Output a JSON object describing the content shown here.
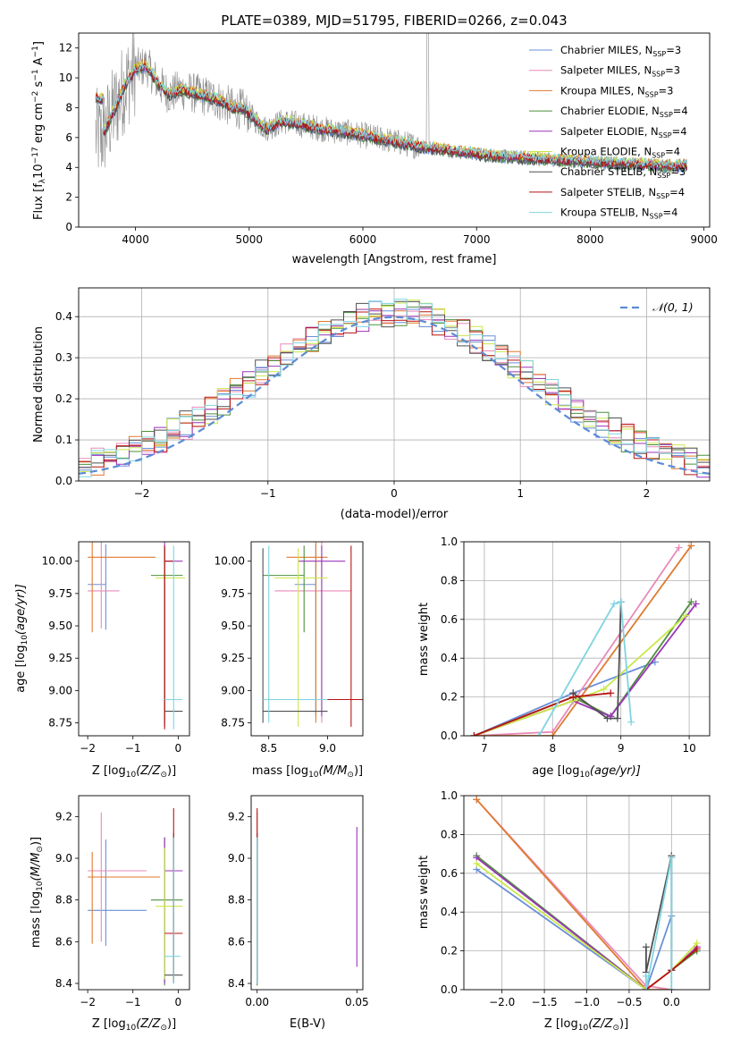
{
  "colors": {
    "chabrier_miles": "#6a8fd8",
    "salpeter_miles": "#e88ab8",
    "kroupa_miles": "#e07a2e",
    "chabrier_elodie": "#4e8f3e",
    "salpeter_elodie": "#9b35b8",
    "kroupa_elodie": "#c9e84a",
    "chabrier_stelib": "#505050",
    "salpeter_stelib": "#b81414",
    "kroupa_stelib": "#7fd4e0",
    "data": "#8a8a8a",
    "gaussian": "#5b8bd6"
  },
  "chart_data": [
    {
      "id": "spectrum",
      "type": "line",
      "title": "PLATE=0389, MJD=51795, FIBERID=0266, z=0.043",
      "xlabel": "wavelength [Angstrom, rest frame]",
      "ylabel_main": "Flux [f",
      "ylabel_sub": "λ",
      "ylabel_rest": "10",
      "ylabel_exp": "−17",
      "ylabel_unit": " erg cm",
      "xlim": [
        3500,
        9050
      ],
      "ylim": [
        0,
        13
      ],
      "xticks": [
        "4000",
        "5000",
        "6000",
        "7000",
        "8000",
        "9000"
      ],
      "yticks": [
        "0",
        "2",
        "4",
        "6",
        "8",
        "10",
        "12"
      ],
      "legend": [
        {
          "name": "Chabrier MILES, N",
          "sub": "SSP",
          "n": "=3",
          "color_key": "chabrier_miles"
        },
        {
          "name": "Salpeter MILES, N",
          "sub": "SSP",
          "n": "=3",
          "color_key": "salpeter_miles"
        },
        {
          "name": "Kroupa MILES, N",
          "sub": "SSP",
          "n": "=3",
          "color_key": "kroupa_miles"
        },
        {
          "name": "Chabrier ELODIE, N",
          "sub": "SSP",
          "n": "=4",
          "color_key": "chabrier_elodie"
        },
        {
          "name": "Salpeter ELODIE, N",
          "sub": "SSP",
          "n": "=4",
          "color_key": "salpeter_elodie"
        },
        {
          "name": "Kroupa ELODIE, N",
          "sub": "SSP",
          "n": "=4",
          "color_key": "kroupa_elodie"
        },
        {
          "name": "Chabrier STELIB, N",
          "sub": "SSP",
          "n": "=3",
          "color_key": "chabrier_stelib"
        },
        {
          "name": "Salpeter STELIB, N",
          "sub": "SSP",
          "n": "=4",
          "color_key": "salpeter_stelib"
        },
        {
          "name": "Kroupa STELIB, N",
          "sub": "SSP",
          "n": "=4",
          "color_key": "kroupa_stelib"
        }
      ],
      "legend_position": "upper-right",
      "continuum": [
        [
          3650,
          6.2
        ],
        [
          3700,
          6.0
        ],
        [
          3800,
          7.6
        ],
        [
          3900,
          9.4
        ],
        [
          4000,
          10.6
        ],
        [
          4100,
          10.8
        ],
        [
          4200,
          9.6
        ],
        [
          4300,
          8.9
        ],
        [
          4400,
          9.2
        ],
        [
          4500,
          9.0
        ],
        [
          4700,
          8.6
        ],
        [
          4850,
          8.0
        ],
        [
          4950,
          7.9
        ],
        [
          5050,
          7.2
        ],
        [
          5150,
          6.6
        ],
        [
          5300,
          7.1
        ],
        [
          5500,
          6.8
        ],
        [
          5700,
          6.5
        ],
        [
          5900,
          6.3
        ],
        [
          6100,
          6.0
        ],
        [
          6300,
          5.7
        ],
        [
          6500,
          5.4
        ],
        [
          6700,
          5.2
        ],
        [
          6900,
          5.0
        ],
        [
          7100,
          4.8
        ],
        [
          7300,
          4.7
        ],
        [
          7500,
          4.6
        ],
        [
          7700,
          4.5
        ],
        [
          8000,
          4.35
        ],
        [
          8300,
          4.25
        ],
        [
          8600,
          4.15
        ],
        [
          8850,
          4.1
        ]
      ]
    },
    {
      "id": "residuals",
      "type": "histogram",
      "xlabel": "(data-model)/error",
      "ylabel": "Normed distribution",
      "xlim": [
        -2.5,
        2.5
      ],
      "ylim": [
        0,
        0.47
      ],
      "xticks": [
        "−2",
        "−1",
        "0",
        "1",
        "2"
      ],
      "yticks": [
        "0.0",
        "0.1",
        "0.2",
        "0.3",
        "0.4"
      ],
      "grid": true,
      "legend": [
        {
          "name": "𝒩(0, 1)",
          "style": "dashed",
          "color_key": "gaussian"
        }
      ],
      "legend_position": "upper-right",
      "bins": [
        -2.5,
        2.5,
        50
      ]
    },
    {
      "id": "age_vs_Z",
      "type": "errorbar",
      "xlabel": "Z [log",
      "xlabel_sub": "10",
      "xlabel_rest": "(Z/Z",
      "xlabel_sun": "⊙",
      "xlabel_end": ")]",
      "ylabel": "age  [log",
      "ylabel_sub": "10",
      "ylabel_rest": "(age/yr)]",
      "xlim": [
        -2.2,
        0.25
      ],
      "ylim": [
        8.65,
        10.15
      ],
      "xticks": [
        "−2",
        "−1",
        "0"
      ],
      "yticks": [
        "8.75",
        "9.00",
        "9.25",
        "9.50",
        "9.75",
        "10.00"
      ],
      "points": [
        {
          "c": "chabrier_miles",
          "x": -1.6,
          "xe": [
            -2.0,
            -1.6
          ],
          "y": 9.82,
          "ye": [
            9.47,
            10.13
          ]
        },
        {
          "c": "salpeter_miles",
          "x": -1.7,
          "xe": [
            -2.0,
            -1.3
          ],
          "y": 9.77,
          "ye": [
            9.48,
            10.15
          ]
        },
        {
          "c": "kroupa_miles",
          "x": -1.9,
          "xe": [
            -2.0,
            -0.5
          ],
          "y": 10.03,
          "ye": [
            9.45,
            10.2
          ]
        },
        {
          "c": "chabrier_elodie",
          "x": -0.3,
          "xe": [
            -0.6,
            0.1
          ],
          "y": 9.89,
          "ye": [
            8.8,
            10.12
          ]
        },
        {
          "c": "salpeter_elodie",
          "x": -0.3,
          "xe": [
            -0.3,
            0.1
          ],
          "y": 10.0,
          "ye": [
            8.72,
            10.15
          ]
        },
        {
          "c": "kroupa_elodie",
          "x": -0.3,
          "xe": [
            -0.5,
            0.15
          ],
          "y": 9.87,
          "ye": [
            8.75,
            10.1
          ]
        },
        {
          "c": "chabrier_stelib",
          "x": -0.3,
          "xe": [
            -0.3,
            0.1
          ],
          "y": 8.84,
          "ye": [
            8.75,
            10.1
          ]
        },
        {
          "c": "salpeter_stelib",
          "x": -0.3,
          "xe": [
            -0.3,
            -0.1
          ],
          "y": 10.0,
          "ye": [
            8.7,
            10.12
          ]
        },
        {
          "c": "kroupa_stelib",
          "x": -0.1,
          "xe": [
            -0.3,
            0.1
          ],
          "y": 8.93,
          "ye": [
            8.7,
            10.12
          ]
        }
      ]
    },
    {
      "id": "age_vs_mass",
      "type": "errorbar",
      "xlabel": "mass [log",
      "xlabel_sub": "10",
      "xlabel_rest": "(M/M",
      "xlabel_sun": "⊙",
      "xlabel_end": ")]",
      "xlim": [
        8.35,
        9.3
      ],
      "ylim": [
        8.65,
        10.15
      ],
      "xticks": [
        "8.5",
        "9.0"
      ],
      "yticks": [
        "8.75",
        "9.00",
        "9.25",
        "9.50",
        "9.75",
        "10.00"
      ],
      "points": [
        {
          "c": "chabrier_miles",
          "x": 8.9,
          "xe": [
            8.72,
            8.9
          ],
          "y": 9.82,
          "ye": [
            8.8,
            10.13
          ]
        },
        {
          "c": "salpeter_miles",
          "x": 8.95,
          "xe": [
            8.55,
            9.2
          ],
          "y": 9.77,
          "ye": [
            8.75,
            10.15
          ]
        },
        {
          "c": "kroupa_miles",
          "x": 8.9,
          "xe": [
            8.65,
            9.0
          ],
          "y": 10.03,
          "ye": [
            8.75,
            10.15
          ]
        },
        {
          "c": "chabrier_elodie",
          "x": 8.8,
          "xe": [
            8.45,
            8.8
          ],
          "y": 9.89,
          "ye": [
            9.45,
            10.12
          ]
        },
        {
          "c": "salpeter_elodie",
          "x": 8.95,
          "xe": [
            8.75,
            9.15
          ],
          "y": 10.0,
          "ye": [
            8.8,
            10.12
          ]
        },
        {
          "c": "kroupa_elodie",
          "x": 8.75,
          "xe": [
            8.55,
            9.0
          ],
          "y": 9.87,
          "ye": [
            8.72,
            10.1
          ]
        },
        {
          "c": "chabrier_stelib",
          "x": 8.45,
          "xe": [
            8.45,
            9.0
          ],
          "y": 8.84,
          "ye": [
            8.75,
            10.1
          ]
        },
        {
          "c": "salpeter_stelib",
          "x": 9.2,
          "xe": [
            8.65,
            9.3
          ],
          "y": 8.93,
          "ye": [
            8.72,
            10.12
          ]
        },
        {
          "c": "kroupa_stelib",
          "x": 8.5,
          "xe": [
            8.45,
            9.0
          ],
          "y": 8.93,
          "ye": [
            8.75,
            10.12
          ]
        }
      ]
    },
    {
      "id": "weight_vs_age",
      "type": "line",
      "xlabel": "age  [log",
      "xlabel_sub": "10",
      "xlabel_rest": "(age/yr)]",
      "ylabel": "mass weight",
      "xlim": [
        6.7,
        10.3
      ],
      "ylim": [
        0,
        1.0
      ],
      "xticks": [
        "7",
        "8",
        "9",
        "10"
      ],
      "yticks": [
        "0.0",
        "0.2",
        "0.4",
        "0.6",
        "0.8",
        "1.0"
      ],
      "grid": true,
      "series": [
        {
          "c": "chabrier_miles",
          "x": [
            6.85,
            8.3,
            9.5
          ],
          "y": [
            0.0,
            0.22,
            0.38
          ]
        },
        {
          "c": "salpeter_miles",
          "x": [
            6.85,
            8.0,
            9.85
          ],
          "y": [
            0.0,
            0.02,
            0.97
          ]
        },
        {
          "c": "kroupa_miles",
          "x": [
            6.85,
            8.0,
            10.03
          ],
          "y": [
            0.0,
            0.0,
            0.98
          ]
        },
        {
          "c": "chabrier_elodie",
          "x": [
            6.85,
            8.3,
            8.85,
            10.03
          ],
          "y": [
            0.0,
            0.2,
            0.1,
            0.69
          ]
        },
        {
          "c": "salpeter_elodie",
          "x": [
            6.85,
            8.3,
            8.85,
            10.1
          ],
          "y": [
            0.0,
            0.18,
            0.1,
            0.68
          ]
        },
        {
          "c": "kroupa_elodie",
          "x": [
            6.85,
            8.3,
            8.75,
            9.95
          ],
          "y": [
            0.0,
            0.18,
            0.24,
            0.62
          ]
        },
        {
          "c": "chabrier_stelib",
          "x": [
            8.3,
            8.8,
            8.95,
            9.0
          ],
          "y": [
            0.22,
            0.09,
            0.09,
            0.69
          ]
        },
        {
          "c": "salpeter_stelib",
          "x": [
            6.85,
            8.3,
            8.85
          ],
          "y": [
            0.0,
            0.2,
            0.22
          ]
        },
        {
          "c": "kroupa_stelib",
          "x": [
            7.8,
            8.9,
            9.0,
            9.15
          ],
          "y": [
            0.0,
            0.68,
            0.69,
            0.07
          ]
        }
      ]
    },
    {
      "id": "mass_vs_Z",
      "type": "errorbar",
      "xlabel": "Z [log",
      "xlabel_sub": "10",
      "xlabel_rest": "(Z/Z",
      "xlabel_sun": "⊙",
      "xlabel_end": ")]",
      "ylabel": "mass [log",
      "ylabel_sub": "10",
      "ylabel_rest": "(M/M",
      "ylabel_sun": "⊙",
      "ylabel_end": ")]",
      "xlim": [
        -2.2,
        0.25
      ],
      "ylim": [
        8.37,
        9.3
      ],
      "xticks": [
        "−2",
        "−1",
        "0"
      ],
      "yticks": [
        "8.4",
        "8.6",
        "8.8",
        "9.0",
        "9.2"
      ],
      "points": [
        {
          "c": "chabrier_miles",
          "x": -1.6,
          "xe": [
            -2.0,
            -0.7
          ],
          "y": 8.75,
          "ye": [
            8.58,
            9.09
          ]
        },
        {
          "c": "salpeter_miles",
          "x": -1.7,
          "xe": [
            -2.0,
            -0.7
          ],
          "y": 8.94,
          "ye": [
            8.6,
            9.22
          ]
        },
        {
          "c": "kroupa_miles",
          "x": -1.9,
          "xe": [
            -2.0,
            -0.4
          ],
          "y": 8.91,
          "ye": [
            8.59,
            9.03
          ]
        },
        {
          "c": "chabrier_elodie",
          "x": -0.3,
          "xe": [
            -0.6,
            0.1
          ],
          "y": 8.8,
          "ye": [
            8.39,
            9.1
          ]
        },
        {
          "c": "salpeter_elodie",
          "x": -0.3,
          "xe": [
            -0.3,
            0.1
          ],
          "y": 8.94,
          "ye": [
            8.4,
            9.1
          ]
        },
        {
          "c": "kroupa_elodie",
          "x": -0.3,
          "xe": [
            -0.5,
            0.1
          ],
          "y": 8.77,
          "ye": [
            8.42,
            9.05
          ]
        },
        {
          "c": "chabrier_stelib",
          "x": -0.1,
          "xe": [
            -0.3,
            0.1
          ],
          "y": 8.44,
          "ye": [
            8.4,
            9.12
          ]
        },
        {
          "c": "salpeter_stelib",
          "x": -0.1,
          "xe": [
            -0.3,
            0.1
          ],
          "y": 8.64,
          "ye": [
            8.41,
            9.24
          ]
        },
        {
          "c": "kroupa_stelib",
          "x": -0.1,
          "xe": [
            -0.3,
            0.05
          ],
          "y": 8.53,
          "ye": [
            8.4,
            9.1
          ]
        }
      ]
    },
    {
      "id": "mass_vs_ebv",
      "type": "errorbar",
      "xlabel": "E(B-V)",
      "xlim": [
        -0.003,
        0.053
      ],
      "ylim": [
        8.37,
        9.3
      ],
      "xticks": [
        "0.00",
        "0.05"
      ],
      "yticks": [
        "8.4",
        "8.6",
        "8.8",
        "9.0",
        "9.2"
      ],
      "points": [
        {
          "c": "chabrier_miles",
          "x": 0.0,
          "ye": [
            8.58,
            9.09
          ]
        },
        {
          "c": "salpeter_miles",
          "x": 0.0,
          "ye": [
            8.6,
            9.22
          ]
        },
        {
          "c": "kroupa_miles",
          "x": 0.0,
          "ye": [
            8.59,
            9.03
          ]
        },
        {
          "c": "chabrier_elodie",
          "x": 0.0,
          "ye": [
            8.39,
            9.1
          ]
        },
        {
          "c": "salpeter_elodie",
          "x": 0.05,
          "ye": [
            8.48,
            9.15
          ]
        },
        {
          "c": "kroupa_elodie",
          "x": 0.0,
          "ye": [
            8.42,
            9.05
          ]
        },
        {
          "c": "chabrier_stelib",
          "x": 0.0,
          "ye": [
            8.4,
            9.12
          ]
        },
        {
          "c": "salpeter_stelib",
          "x": 0.0,
          "ye": [
            8.41,
            9.24
          ]
        },
        {
          "c": "kroupa_stelib",
          "x": 0.0,
          "ye": [
            8.4,
            9.1
          ]
        }
      ]
    },
    {
      "id": "weight_vs_Z",
      "type": "line",
      "xlabel": "Z [log",
      "xlabel_sub": "10",
      "xlabel_rest": "(Z/Z",
      "xlabel_sun": "⊙",
      "xlabel_end": ")]",
      "ylabel": "mass weight",
      "xlim": [
        -2.45,
        0.45
      ],
      "ylim": [
        0,
        1.0
      ],
      "xticks": [
        "−2.0",
        "−1.5",
        "−1.0",
        "−0.5",
        "0.0"
      ],
      "yticks": [
        "0.0",
        "0.2",
        "0.4",
        "0.6",
        "0.8",
        "1.0"
      ],
      "grid": true,
      "series": [
        {
          "c": "chabrier_miles",
          "x": [
            -2.3,
            -0.3,
            0.0
          ],
          "y": [
            0.62,
            0.0,
            0.38
          ]
        },
        {
          "c": "salpeter_miles",
          "x": [
            -2.3,
            -0.3,
            0.0
          ],
          "y": [
            0.98,
            0.02,
            0.0
          ]
        },
        {
          "c": "kroupa_miles",
          "x": [
            -2.3,
            -0.3,
            0.0
          ],
          "y": [
            0.98,
            0.0,
            0.0
          ]
        },
        {
          "c": "chabrier_elodie",
          "x": [
            -2.3,
            -0.3,
            0.0,
            0.3
          ],
          "y": [
            0.69,
            0.0,
            0.1,
            0.2
          ]
        },
        {
          "c": "salpeter_elodie",
          "x": [
            -2.3,
            -0.3,
            0.0,
            0.3
          ],
          "y": [
            0.68,
            0.0,
            0.1,
            0.22
          ]
        },
        {
          "c": "kroupa_elodie",
          "x": [
            -2.3,
            -0.3,
            0.0,
            0.3
          ],
          "y": [
            0.65,
            0.0,
            0.1,
            0.24
          ]
        },
        {
          "c": "chabrier_stelib",
          "x": [
            -0.3,
            -0.3,
            0.0,
            0.0
          ],
          "y": [
            0.22,
            0.09,
            0.69,
            0.1
          ]
        },
        {
          "c": "salpeter_stelib",
          "x": [
            -0.3,
            0.0,
            0.3
          ],
          "y": [
            0.0,
            0.1,
            0.21
          ]
        },
        {
          "c": "kroupa_stelib",
          "x": [
            -0.3,
            -0.3,
            0.0,
            0.0
          ],
          "y": [
            0.07,
            0.0,
            0.68,
            0.0
          ]
        }
      ]
    }
  ]
}
